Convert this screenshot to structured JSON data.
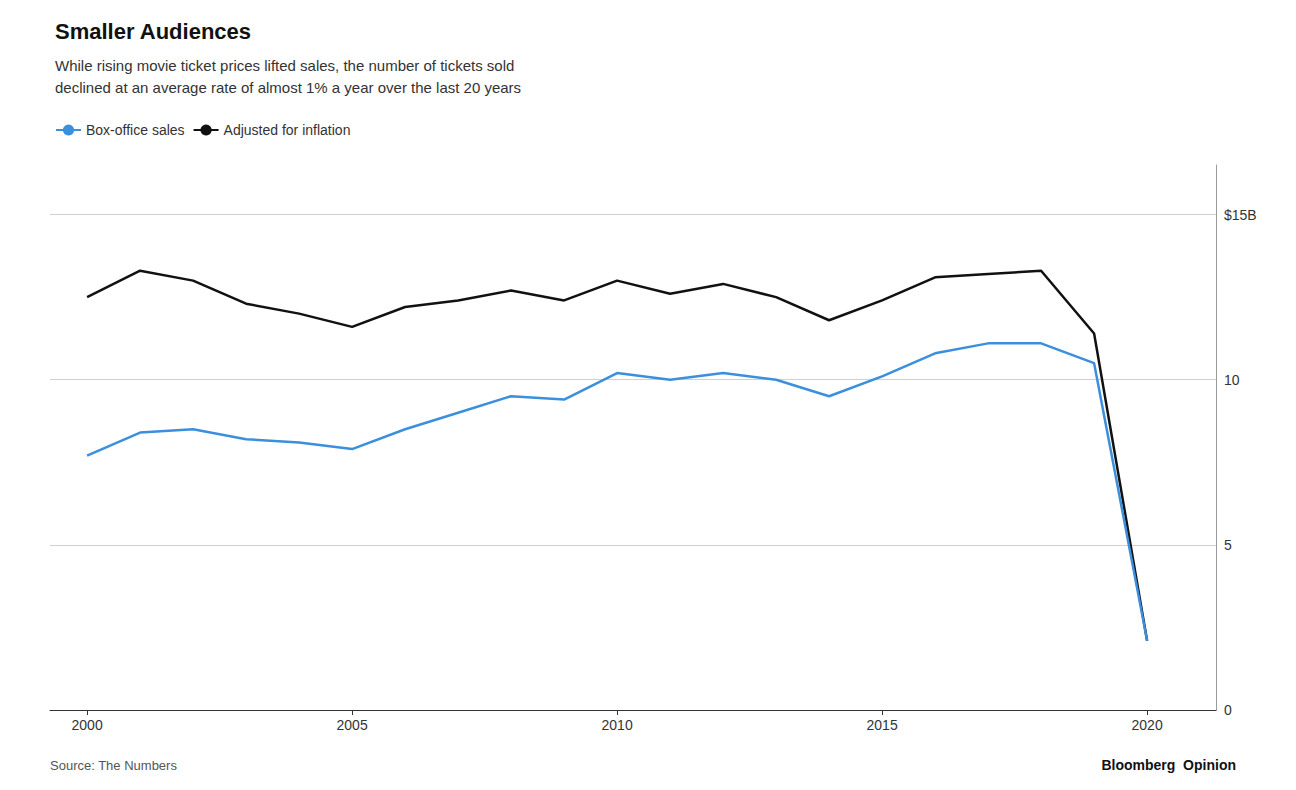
{
  "chart_data": {
    "type": "line",
    "title": "Smaller Audiences",
    "subtitle": "While rising movie ticket prices lifted sales, the number of tickets sold\ndeclined at an average rate of almost 1% a year over the last 20 years",
    "x": [
      2000,
      2001,
      2002,
      2003,
      2004,
      2005,
      2006,
      2007,
      2008,
      2009,
      2010,
      2011,
      2012,
      2013,
      2014,
      2015,
      2016,
      2017,
      2018,
      2019,
      2020
    ],
    "series": [
      {
        "name": "Box-office sales",
        "color": "#3b8fdd",
        "values": [
          7.7,
          8.4,
          8.5,
          8.2,
          8.1,
          7.9,
          8.5,
          9.0,
          9.5,
          9.4,
          10.2,
          10.0,
          10.2,
          10.0,
          9.5,
          10.1,
          10.8,
          11.1,
          11.1,
          10.5,
          2.1
        ]
      },
      {
        "name": "Adjusted for inflation",
        "color": "#111111",
        "values": [
          12.5,
          13.3,
          13.0,
          12.3,
          12.0,
          11.6,
          12.2,
          12.4,
          12.7,
          12.4,
          13.0,
          12.6,
          12.9,
          12.5,
          11.8,
          12.4,
          13.1,
          13.2,
          13.3,
          11.4,
          2.1
        ]
      }
    ],
    "xlim": [
      1999.3,
      2021.3
    ],
    "xticks": [
      2000,
      2005,
      2010,
      2015,
      2020
    ],
    "ylim": [
      0,
      16.5
    ],
    "yticks": [
      0,
      5,
      10,
      {
        "value": 15,
        "label": "$15B"
      }
    ],
    "grid": true,
    "legend": "top",
    "source": "Source: The Numbers",
    "annotations": [
      "Bloomberg",
      "Opinion"
    ]
  }
}
